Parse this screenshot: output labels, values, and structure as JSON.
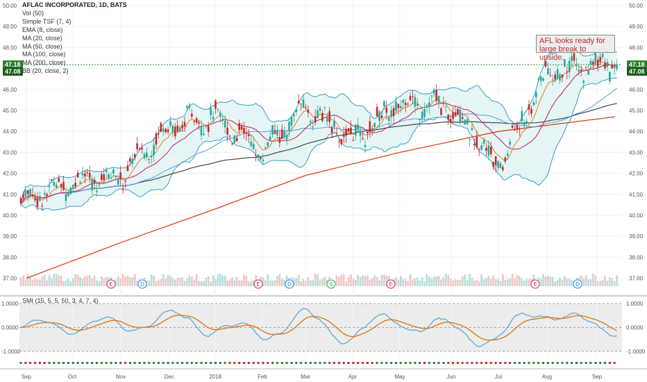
{
  "chart_data": {
    "type": "candlestick",
    "symbol_title": "AFLAC INCORPORATED, 1D, BATS",
    "indicator_labels": [
      "Vol (50)",
      "Simple TSF (7, 4)",
      "EMA (8, close)",
      "MA (20, close)",
      "MA (50, close)",
      "MA (100, close)",
      "MA (200, close)",
      "BB (20, close, 2)"
    ],
    "price_ticks": [
      "37.00",
      "38.00",
      "39.00",
      "40.00",
      "41.00",
      "42.00",
      "43.00",
      "44.00",
      "45.00",
      "46.00",
      "47.00",
      "48.00",
      "49.00",
      "50.00"
    ],
    "x_tick_labels": [
      "Sep",
      "Oct",
      "Nov",
      "Dec",
      "2018",
      "Feb",
      "Mar",
      "Apr",
      "May",
      "Jun",
      "Jul",
      "Aug",
      "Sep"
    ],
    "last_price_labels": [
      "47.18",
      "47.08"
    ],
    "annotation": "AFL looks ready for large break to upside.",
    "event_markers": [
      "E",
      "D",
      "E",
      "D",
      "S",
      "E",
      "E",
      "D"
    ],
    "oscillator": {
      "label": "SMI (15, 5, 5, 50, 3, 4, 7, 4)",
      "ticks": [
        "1.0000",
        "0.0000",
        "-1.0000"
      ],
      "range": [
        -1.0,
        1.0
      ]
    },
    "price_path": [
      [
        "Sep",
        40.8
      ],
      [
        "Oct",
        41.6
      ],
      [
        "Nov",
        41.9
      ],
      [
        "Dec",
        44.3
      ],
      [
        "2018",
        44.7
      ],
      [
        "Feb",
        43.0
      ],
      [
        "Mar",
        45.2
      ],
      [
        "Apr",
        43.6
      ],
      [
        "May",
        45.4
      ],
      [
        "Jun",
        45.2
      ],
      [
        "Jul",
        42.3
      ],
      [
        "Aug",
        46.8
      ],
      [
        "Sep",
        47.18
      ]
    ],
    "ma200_path": [
      [
        "Sep",
        37.0
      ],
      [
        "Nov",
        38.7
      ],
      [
        "2018",
        40.3
      ],
      [
        "Mar",
        41.9
      ],
      [
        "May",
        43.0
      ],
      [
        "Jul",
        44.0
      ],
      [
        "Sep",
        44.7
      ]
    ]
  },
  "colors": {
    "up": "#26a69a",
    "down": "#c62828",
    "ema8": "#e67e22",
    "ma20": "#c2185b",
    "ma50": "#5b9bd5",
    "ma100": "#37474f",
    "ma200": "#d84315",
    "bb": "#3a9bc0",
    "bb_fill": "#dff3f3",
    "smi": "#5aa5d1",
    "smi_signal": "#e07b18"
  }
}
